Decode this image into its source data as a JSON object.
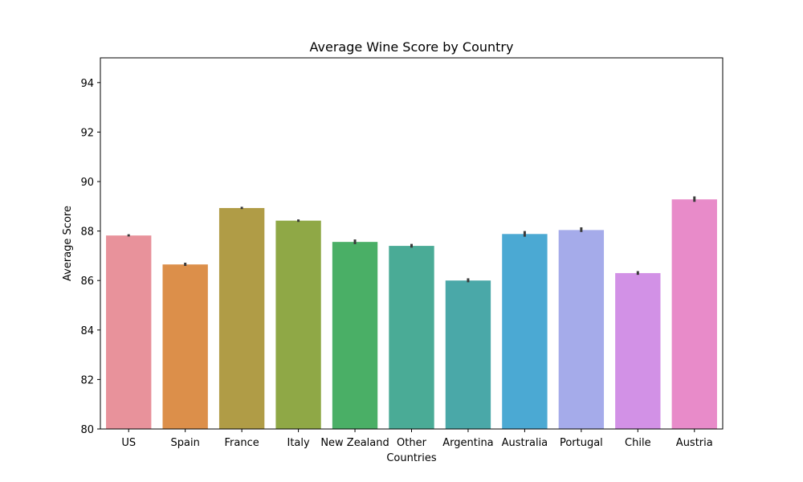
{
  "chart_data": {
    "type": "bar",
    "title": "Average Wine Score by Country",
    "xlabel": "Countries",
    "ylabel": "Average Score",
    "ylim": [
      80,
      95
    ],
    "yticks": [
      80,
      82,
      84,
      86,
      88,
      90,
      92,
      94
    ],
    "categories": [
      "US",
      "Spain",
      "France",
      "Italy",
      "New Zealand",
      "Other",
      "Argentina",
      "Australia",
      "Portugal",
      "Chile",
      "Austria"
    ],
    "values": [
      87.82,
      86.65,
      88.93,
      88.42,
      87.56,
      87.4,
      86.0,
      87.88,
      88.04,
      86.3,
      89.28
    ],
    "error_low": [
      87.78,
      86.59,
      88.89,
      88.37,
      87.47,
      87.33,
      85.93,
      87.77,
      87.96,
      86.23,
      89.18
    ],
    "error_high": [
      87.87,
      86.72,
      88.98,
      88.47,
      87.66,
      87.48,
      86.09,
      88.0,
      88.15,
      86.38,
      89.4
    ],
    "colors": [
      "#e8929b",
      "#dc8f4a",
      "#b09c46",
      "#8fa846",
      "#4aaf66",
      "#4aab96",
      "#4aa8a8",
      "#4ba9d3",
      "#a5abea",
      "#d291e6",
      "#e88bc9"
    ],
    "errorbar_color": "#3a3a3a",
    "grid": false,
    "legend": "none"
  }
}
